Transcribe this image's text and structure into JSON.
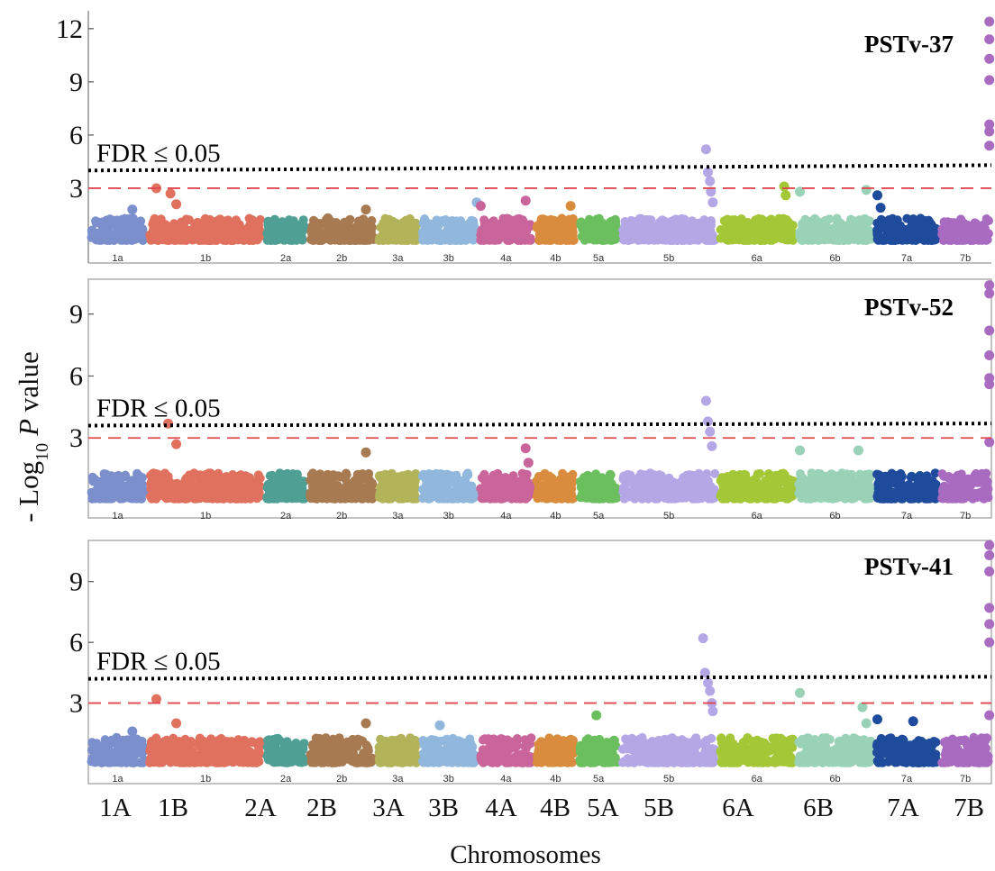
{
  "chart_data": {
    "type": "scatter",
    "description": "Manhattan plots, three stacked panels sharing chromosome x-axis",
    "xlabel": "Chromosomes",
    "ylabel_prefix": "- Log",
    "ylabel_sub": "10",
    "ylabel_var": "P",
    "ylabel_suffix": " value",
    "fdr_label": "FDR ≤  0.05",
    "chromosomes_small": [
      "1a",
      "1b",
      "2a",
      "2b",
      "3a",
      "3b",
      "4a",
      "4b",
      "5a",
      "5b",
      "6a",
      "6b",
      "7a",
      "7b"
    ],
    "chromosomes_big": [
      "1A",
      "1B",
      "2A",
      "2B",
      "3A",
      "3B",
      "4A",
      "4B",
      "5A",
      "5B",
      "6A",
      "6B",
      "7A",
      "7B"
    ],
    "chromosome_widths": [
      4.5,
      9.0,
      3.3,
      5.3,
      3.3,
      4.5,
      4.3,
      3.3,
      3.3,
      7.5,
      6.0,
      6.0,
      5.0,
      4.0
    ],
    "chromosome_colors": [
      "#7b8fcc",
      "#e0715f",
      "#4f9f95",
      "#a87a52",
      "#b3b35a",
      "#91b8dc",
      "#c9659a",
      "#d98c3d",
      "#6bbf5e",
      "#b4a7e6",
      "#a4c737",
      "#9ad2b7",
      "#1f4b9c",
      "#a86bc0"
    ],
    "threshold_color": "#e0474f",
    "fdr_line_color": "#000000",
    "panels": [
      {
        "title": "PSTv-37",
        "ylim": [
          0,
          12.5
        ],
        "yticks": [
          3,
          6,
          9,
          12
        ],
        "threshold": 3.0,
        "fdr_start": 4.0,
        "fdr_end": 4.3,
        "peaks": [
          {
            "chrom": 0,
            "pos": 0.75,
            "y": 1.8
          },
          {
            "chrom": 1,
            "pos": 0.08,
            "y": 3.0
          },
          {
            "chrom": 1,
            "pos": 0.2,
            "y": 2.7
          },
          {
            "chrom": 1,
            "pos": 0.25,
            "y": 2.1
          },
          {
            "chrom": 3,
            "pos": 0.3,
            "y": 1.3
          },
          {
            "chrom": 3,
            "pos": 0.85,
            "y": 1.8
          },
          {
            "chrom": 5,
            "pos": 0.98,
            "y": 2.2
          },
          {
            "chrom": 6,
            "pos": 0.05,
            "y": 2.0
          },
          {
            "chrom": 6,
            "pos": 0.85,
            "y": 2.3
          },
          {
            "chrom": 7,
            "pos": 0.85,
            "y": 2.0
          },
          {
            "chrom": 9,
            "pos": 0.88,
            "y": 5.2
          },
          {
            "chrom": 9,
            "pos": 0.9,
            "y": 3.9
          },
          {
            "chrom": 9,
            "pos": 0.92,
            "y": 3.4
          },
          {
            "chrom": 9,
            "pos": 0.93,
            "y": 2.8
          },
          {
            "chrom": 9,
            "pos": 0.95,
            "y": 2.2
          },
          {
            "chrom": 10,
            "pos": 0.85,
            "y": 3.1
          },
          {
            "chrom": 10,
            "pos": 0.87,
            "y": 2.6
          },
          {
            "chrom": 11,
            "pos": 0.05,
            "y": 2.8
          },
          {
            "chrom": 11,
            "pos": 0.9,
            "y": 2.9
          },
          {
            "chrom": 12,
            "pos": 0.05,
            "y": 2.6
          },
          {
            "chrom": 12,
            "pos": 0.1,
            "y": 1.9
          },
          {
            "chrom": 13,
            "pos": 0.96,
            "y": 12.4
          },
          {
            "chrom": 13,
            "pos": 0.96,
            "y": 11.4
          },
          {
            "chrom": 13,
            "pos": 0.96,
            "y": 10.3
          },
          {
            "chrom": 13,
            "pos": 0.96,
            "y": 9.1
          },
          {
            "chrom": 13,
            "pos": 0.96,
            "y": 6.6
          },
          {
            "chrom": 13,
            "pos": 0.96,
            "y": 6.2
          },
          {
            "chrom": 13,
            "pos": 0.96,
            "y": 5.4
          }
        ]
      },
      {
        "title": "PSTv-52",
        "ylim": [
          0,
          10.6
        ],
        "yticks": [
          3,
          6,
          9
        ],
        "threshold": 3.0,
        "fdr_start": 3.6,
        "fdr_end": 3.7,
        "peaks": [
          {
            "chrom": 1,
            "pos": 0.18,
            "y": 3.7
          },
          {
            "chrom": 1,
            "pos": 0.25,
            "y": 2.7
          },
          {
            "chrom": 3,
            "pos": 0.85,
            "y": 2.3
          },
          {
            "chrom": 6,
            "pos": 0.85,
            "y": 2.5
          },
          {
            "chrom": 6,
            "pos": 0.9,
            "y": 1.8
          },
          {
            "chrom": 9,
            "pos": 0.88,
            "y": 4.8
          },
          {
            "chrom": 9,
            "pos": 0.9,
            "y": 3.8
          },
          {
            "chrom": 9,
            "pos": 0.92,
            "y": 3.3
          },
          {
            "chrom": 9,
            "pos": 0.94,
            "y": 2.6
          },
          {
            "chrom": 11,
            "pos": 0.05,
            "y": 2.4
          },
          {
            "chrom": 11,
            "pos": 0.8,
            "y": 2.4
          },
          {
            "chrom": 13,
            "pos": 0.96,
            "y": 10.4
          },
          {
            "chrom": 13,
            "pos": 0.96,
            "y": 10.0
          },
          {
            "chrom": 13,
            "pos": 0.96,
            "y": 8.2
          },
          {
            "chrom": 13,
            "pos": 0.96,
            "y": 7.0
          },
          {
            "chrom": 13,
            "pos": 0.96,
            "y": 5.9
          },
          {
            "chrom": 13,
            "pos": 0.96,
            "y": 5.6
          },
          {
            "chrom": 13,
            "pos": 0.96,
            "y": 2.8
          }
        ]
      },
      {
        "title": "PSTv-41",
        "ylim": [
          0,
          10.9
        ],
        "yticks": [
          3,
          6,
          9
        ],
        "threshold": 3.0,
        "fdr_start": 4.2,
        "fdr_end": 4.3,
        "peaks": [
          {
            "chrom": 0,
            "pos": 0.75,
            "y": 1.6
          },
          {
            "chrom": 1,
            "pos": 0.08,
            "y": 3.2
          },
          {
            "chrom": 1,
            "pos": 0.25,
            "y": 2.0
          },
          {
            "chrom": 3,
            "pos": 0.85,
            "y": 2.0
          },
          {
            "chrom": 5,
            "pos": 0.35,
            "y": 1.9
          },
          {
            "chrom": 8,
            "pos": 0.45,
            "y": 2.4
          },
          {
            "chrom": 9,
            "pos": 0.85,
            "y": 6.2
          },
          {
            "chrom": 9,
            "pos": 0.87,
            "y": 4.5
          },
          {
            "chrom": 9,
            "pos": 0.9,
            "y": 4.0
          },
          {
            "chrom": 9,
            "pos": 0.92,
            "y": 3.6
          },
          {
            "chrom": 9,
            "pos": 0.94,
            "y": 3.0
          },
          {
            "chrom": 9,
            "pos": 0.95,
            "y": 2.6
          },
          {
            "chrom": 11,
            "pos": 0.05,
            "y": 3.5
          },
          {
            "chrom": 11,
            "pos": 0.85,
            "y": 2.8
          },
          {
            "chrom": 11,
            "pos": 0.9,
            "y": 2.0
          },
          {
            "chrom": 12,
            "pos": 0.05,
            "y": 2.2
          },
          {
            "chrom": 12,
            "pos": 0.6,
            "y": 2.1
          },
          {
            "chrom": 13,
            "pos": 0.96,
            "y": 10.8
          },
          {
            "chrom": 13,
            "pos": 0.96,
            "y": 10.3
          },
          {
            "chrom": 13,
            "pos": 0.96,
            "y": 9.5
          },
          {
            "chrom": 13,
            "pos": 0.96,
            "y": 7.7
          },
          {
            "chrom": 13,
            "pos": 0.96,
            "y": 6.9
          },
          {
            "chrom": 13,
            "pos": 0.96,
            "y": 6.0
          },
          {
            "chrom": 13,
            "pos": 0.96,
            "y": 2.4
          }
        ]
      }
    ]
  }
}
